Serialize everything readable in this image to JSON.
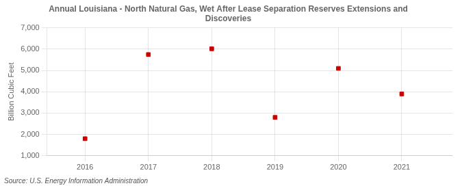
{
  "chart_data": {
    "type": "scatter",
    "title": "Annual Louisiana - North Natural Gas, Wet After Lease Separation Reserves Extensions and\nDiscoveries",
    "ylabel": "Billion Cubic Feet",
    "source": "Source: U.S. Energy Information Administration",
    "x": [
      2016,
      2017,
      2018,
      2019,
      2020,
      2021
    ],
    "values": [
      1800,
      5750,
      6020,
      2800,
      5100,
      3900
    ],
    "color": "#cc0000",
    "marker": "square",
    "xlim": [
      2015.4,
      2021.8
    ],
    "xticks": [
      2016,
      2017,
      2018,
      2019,
      2020,
      2021
    ],
    "ylim": [
      1000,
      7000
    ],
    "yticks": [
      {
        "value": 1000,
        "label": "1,000"
      },
      {
        "value": 2000,
        "label": "2,000"
      },
      {
        "value": 3000,
        "label": "3,000"
      },
      {
        "value": 4000,
        "label": "4,000"
      },
      {
        "value": 5000,
        "label": "5,000"
      },
      {
        "value": 6000,
        "label": "6,000"
      },
      {
        "value": 7000,
        "label": "7,000"
      }
    ],
    "grid": true
  }
}
